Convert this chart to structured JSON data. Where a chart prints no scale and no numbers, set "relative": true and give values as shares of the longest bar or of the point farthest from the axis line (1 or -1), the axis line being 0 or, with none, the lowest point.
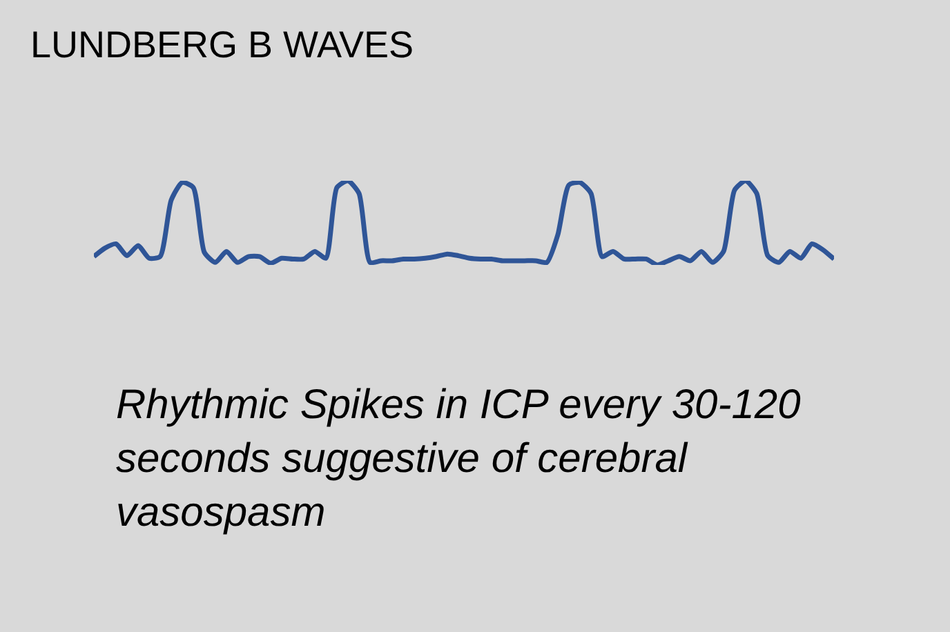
{
  "chart_data": {
    "type": "line",
    "title": "LUNDBERG B WAVES",
    "relative": true,
    "color": "#2f5597",
    "marker": "none",
    "legend": false,
    "annotations": [
      "Rhythmic Spikes in ICP every 30-120 seconds suggestive of cerebral vasospasm"
    ],
    "categories": [
      null,
      null,
      null,
      null,
      null,
      null,
      null,
      null,
      null,
      null,
      null,
      null,
      null,
      null,
      null,
      null,
      null,
      null,
      null,
      null,
      null,
      null,
      null,
      null,
      null,
      null,
      null,
      null,
      null,
      null,
      null,
      null,
      null,
      null,
      null,
      null,
      null,
      null,
      null,
      null,
      null,
      null,
      null,
      null,
      null,
      null,
      null,
      null,
      null,
      null,
      null,
      null,
      null,
      null,
      null,
      null,
      null,
      null,
      null,
      null,
      null,
      null,
      null,
      null,
      null,
      null,
      null,
      null
    ],
    "values": [
      0.1,
      0.2,
      0.25,
      0.11,
      0.23,
      0.08,
      0.1,
      0.77,
      0.98,
      0.92,
      0.15,
      0.03,
      0.16,
      0.03,
      0.1,
      0.1,
      0.02,
      0.08,
      0.07,
      0.07,
      0.16,
      0.08,
      0.92,
      1,
      0.85,
      0.03,
      0.05,
      0.05,
      0.07,
      0.07,
      0.08,
      0.1,
      0.13,
      0.11,
      0.08,
      0.07,
      0.07,
      0.05,
      0.05,
      0.05,
      0.05,
      0.03,
      0.36,
      0.95,
      0.98,
      0.85,
      0.1,
      0.16,
      0.07,
      0.07,
      0.07,
      0,
      0.05,
      0.1,
      0.05,
      0.16,
      0.03,
      0.16,
      0.89,
      1,
      0.85,
      0.11,
      0.03,
      0.16,
      0.08,
      0.25,
      0.18,
      0.07
    ]
  }
}
